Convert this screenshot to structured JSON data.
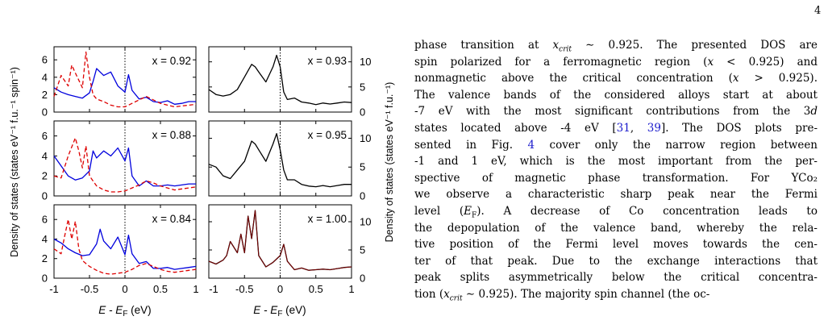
{
  "page_number": "4",
  "figure": {
    "y_axis_left": "Density of states (states eV⁻¹ f.u.⁻¹ spin⁻¹)",
    "y_axis_right": "Density of states (states eV⁻¹ f.u.⁻¹)",
    "x_axis_left": "E - E_F (eV)",
    "x_axis_right": "E - E_F (eV)",
    "colors": {
      "majority": "#0000dd",
      "minority": "#dd0000",
      "total": "#000000",
      "dark_red": "#7a0000"
    }
  },
  "chart_data": [
    {
      "type": "line",
      "panel": "left-top",
      "annotation": "x = 0.92",
      "xlim": [
        -1,
        1
      ],
      "ylim": [
        0,
        7.5
      ],
      "xticks": [
        -1,
        -0.5,
        0,
        0.5,
        1
      ],
      "yticks": [
        0,
        2,
        4,
        6
      ],
      "series": [
        {
          "style": "solid-blue",
          "x": [
            -1,
            -0.9,
            -0.8,
            -0.7,
            -0.6,
            -0.5,
            -0.45,
            -0.4,
            -0.3,
            -0.2,
            -0.1,
            0,
            0.05,
            0.1,
            0.2,
            0.3,
            0.4,
            0.5,
            0.6,
            0.7,
            0.8,
            0.9,
            1
          ],
          "y": [
            2.8,
            2.3,
            2.0,
            1.8,
            1.6,
            2.2,
            3.5,
            5.0,
            4.2,
            4.6,
            3.0,
            2.3,
            4.3,
            2.5,
            1.5,
            1.7,
            1.2,
            1.1,
            1.3,
            0.9,
            1.0,
            1.2,
            1.2
          ]
        },
        {
          "style": "dashed-red",
          "x": [
            -1,
            -0.9,
            -0.8,
            -0.75,
            -0.7,
            -0.6,
            -0.55,
            -0.5,
            -0.45,
            -0.4,
            -0.3,
            -0.2,
            -0.1,
            0,
            0.1,
            0.2,
            0.3,
            0.4,
            0.5,
            0.6,
            0.7,
            0.8,
            0.9,
            1
          ],
          "y": [
            1.8,
            4.2,
            3.0,
            5.4,
            4.5,
            2.8,
            6.9,
            4.0,
            2.0,
            1.5,
            1.2,
            0.8,
            0.6,
            0.6,
            1.0,
            1.4,
            1.8,
            1.4,
            1.0,
            0.8,
            0.6,
            0.7,
            0.8,
            0.9
          ]
        }
      ]
    },
    {
      "type": "line",
      "panel": "left-middle",
      "annotation": "x = 0.88",
      "xlim": [
        -1,
        1
      ],
      "ylim": [
        0,
        7.5
      ],
      "xticks": [
        -1,
        -0.5,
        0,
        0.5,
        1
      ],
      "yticks": [
        0,
        2,
        4,
        6
      ],
      "series": [
        {
          "style": "solid-blue",
          "x": [
            -1,
            -0.9,
            -0.8,
            -0.7,
            -0.6,
            -0.5,
            -0.45,
            -0.4,
            -0.3,
            -0.2,
            -0.1,
            0,
            0.05,
            0.1,
            0.2,
            0.3,
            0.4,
            0.5,
            0.6,
            0.7,
            0.8,
            0.9,
            1
          ],
          "y": [
            4.0,
            3.0,
            2.0,
            1.6,
            1.8,
            2.5,
            4.5,
            3.8,
            4.5,
            4.0,
            4.8,
            3.5,
            4.8,
            2.0,
            1.0,
            1.5,
            1.0,
            1.0,
            1.1,
            1.0,
            1.1,
            1.2,
            1.2
          ]
        },
        {
          "style": "dashed-red",
          "x": [
            -1,
            -0.9,
            -0.8,
            -0.7,
            -0.65,
            -0.6,
            -0.55,
            -0.5,
            -0.4,
            -0.3,
            -0.2,
            -0.1,
            0,
            0.1,
            0.2,
            0.3,
            0.4,
            0.5,
            0.6,
            0.7,
            0.8,
            0.9,
            1
          ],
          "y": [
            2.0,
            1.8,
            4.0,
            5.8,
            4.5,
            2.8,
            5.0,
            2.0,
            1.0,
            0.6,
            0.4,
            0.4,
            0.5,
            0.8,
            1.1,
            1.5,
            1.3,
            1.0,
            0.8,
            0.6,
            0.7,
            0.8,
            0.9
          ]
        }
      ]
    },
    {
      "type": "line",
      "panel": "left-bottom",
      "annotation": "x = 0.84",
      "xlim": [
        -1,
        1
      ],
      "ylim": [
        0,
        7.5
      ],
      "xticks": [
        -1,
        -0.5,
        0,
        0.5,
        1
      ],
      "yticks": [
        0,
        2,
        4,
        6
      ],
      "series": [
        {
          "style": "solid-blue",
          "x": [
            -1,
            -0.9,
            -0.8,
            -0.7,
            -0.6,
            -0.5,
            -0.4,
            -0.35,
            -0.3,
            -0.2,
            -0.1,
            0,
            0.05,
            0.1,
            0.2,
            0.3,
            0.4,
            0.5,
            0.6,
            0.7,
            0.8,
            0.9,
            1
          ],
          "y": [
            4.0,
            3.6,
            3.0,
            2.6,
            2.3,
            2.4,
            3.5,
            5.0,
            3.8,
            3.0,
            4.2,
            2.4,
            4.4,
            2.5,
            1.5,
            1.7,
            1.0,
            1.0,
            1.1,
            0.9,
            1.0,
            1.1,
            1.2
          ]
        },
        {
          "style": "dashed-red",
          "x": [
            -1,
            -0.9,
            -0.85,
            -0.8,
            -0.75,
            -0.7,
            -0.65,
            -0.6,
            -0.5,
            -0.4,
            -0.3,
            -0.2,
            -0.1,
            0,
            0.1,
            0.2,
            0.3,
            0.4,
            0.5,
            0.6,
            0.7,
            0.8,
            0.9,
            1
          ],
          "y": [
            3.0,
            2.5,
            4.3,
            6.0,
            4.0,
            5.8,
            3.0,
            1.8,
            1.2,
            0.8,
            0.5,
            0.4,
            0.5,
            0.6,
            0.9,
            1.3,
            1.5,
            1.2,
            0.9,
            0.7,
            0.6,
            0.7,
            0.8,
            0.9
          ]
        }
      ]
    },
    {
      "type": "line",
      "panel": "right-top",
      "annotation": "x = 0.93",
      "xlim": [
        -1,
        1
      ],
      "ylim": [
        0,
        13
      ],
      "xticks": [
        -1,
        -0.5,
        0,
        0.5,
        1
      ],
      "yticks": [
        0,
        5,
        10
      ],
      "series": [
        {
          "style": "solid-black",
          "x": [
            -1,
            -0.9,
            -0.8,
            -0.7,
            -0.6,
            -0.5,
            -0.4,
            -0.35,
            -0.3,
            -0.2,
            -0.1,
            -0.05,
            0,
            0.05,
            0.1,
            0.2,
            0.3,
            0.4,
            0.5,
            0.6,
            0.7,
            0.8,
            0.9,
            1
          ],
          "y": [
            4.5,
            3.5,
            3.2,
            3.5,
            4.5,
            7.0,
            9.5,
            9.0,
            8.0,
            6.0,
            9.0,
            11.3,
            9.0,
            4.0,
            2.5,
            2.8,
            2.0,
            1.8,
            1.5,
            1.8,
            1.6,
            1.8,
            2.0,
            1.9
          ]
        }
      ]
    },
    {
      "type": "line",
      "panel": "right-middle",
      "annotation": "x = 0.95",
      "xlim": [
        -1,
        1
      ],
      "ylim": [
        0,
        13
      ],
      "xticks": [
        -1,
        -0.5,
        0,
        0.5,
        1
      ],
      "yticks": [
        0,
        5,
        10
      ],
      "series": [
        {
          "style": "solid-black",
          "x": [
            -1,
            -0.9,
            -0.8,
            -0.7,
            -0.6,
            -0.5,
            -0.4,
            -0.35,
            -0.3,
            -0.2,
            -0.1,
            -0.05,
            0,
            0.05,
            0.1,
            0.2,
            0.3,
            0.4,
            0.5,
            0.6,
            0.7,
            0.8,
            0.9,
            1
          ],
          "y": [
            5.5,
            5.0,
            3.5,
            3.0,
            4.5,
            6.0,
            9.5,
            9.0,
            8.0,
            6.0,
            9.0,
            10.8,
            8.0,
            4.5,
            2.8,
            2.8,
            2.0,
            1.7,
            1.6,
            1.8,
            1.6,
            1.8,
            2.0,
            2.0
          ]
        }
      ]
    },
    {
      "type": "line",
      "panel": "right-bottom",
      "annotation": "x = 1.00",
      "xlim": [
        -1,
        1
      ],
      "ylim": [
        0,
        13
      ],
      "xticks": [
        -1,
        -0.5,
        0,
        0.5,
        1
      ],
      "yticks": [
        0,
        5,
        10
      ],
      "series": [
        {
          "style": "solid-black",
          "x": [
            -1,
            -0.9,
            -0.8,
            -0.75,
            -0.7,
            -0.6,
            -0.55,
            -0.5,
            -0.45,
            -0.4,
            -0.35,
            -0.3,
            -0.2,
            -0.1,
            0,
            0.05,
            0.1,
            0.2,
            0.3,
            0.4,
            0.5,
            0.6,
            0.7,
            0.8,
            0.9,
            1
          ],
          "y": [
            3.0,
            2.5,
            3.2,
            4.0,
            6.5,
            4.5,
            7.8,
            4.5,
            11.0,
            7.0,
            12.0,
            4.0,
            2.0,
            2.8,
            4.0,
            6.0,
            3.0,
            1.5,
            1.8,
            1.4,
            1.5,
            1.6,
            1.5,
            1.7,
            1.9,
            2.0
          ]
        },
        {
          "style": "solid-dark-red",
          "x": [
            -1,
            -0.9,
            -0.8,
            -0.75,
            -0.7,
            -0.6,
            -0.55,
            -0.5,
            -0.45,
            -0.4,
            -0.35,
            -0.3,
            -0.2,
            -0.1,
            0,
            0.05,
            0.1,
            0.2,
            0.3,
            0.4,
            0.5,
            0.6,
            0.7,
            0.8,
            0.9,
            1
          ],
          "y": [
            3.0,
            2.5,
            3.2,
            4.0,
            6.5,
            4.5,
            7.8,
            4.5,
            11.0,
            7.0,
            12.0,
            4.0,
            2.0,
            2.8,
            4.0,
            6.0,
            3.0,
            1.5,
            1.8,
            1.4,
            1.5,
            1.6,
            1.5,
            1.7,
            1.9,
            2.0
          ]
        }
      ]
    }
  ],
  "text_lines": [
    [
      "phase transition at x",
      "crit",
      " ∼ 0.925. The presented DOS are"
    ],
    [
      "spin polarized for a ferromagnetic region (x < 0.925) and"
    ],
    [
      "nonmagnetic above the critical concentration (x > 0.925)."
    ],
    [
      "The valence bands of the considered alloys start at about"
    ],
    [
      "-7 eV with the most significant contributions from the 3d"
    ],
    [
      "states located above -4 eV [",
      "31",
      ", ",
      "39",
      "]. The DOS plots pre-"
    ],
    [
      "sented in Fig. ",
      "4",
      " cover only the narrow region between"
    ],
    [
      "-1 and 1 eV, which is the most important from the per-"
    ],
    [
      "spective of magnetic phase transformation.  For YCo₂"
    ],
    [
      "we observe a characteristic sharp peak near the Fermi"
    ],
    [
      "level (E_F).   A decrease of Co concentration leads to"
    ],
    [
      "the depopulation of the valence band, whereby the rela-"
    ],
    [
      "tive position of the Fermi level moves towards the cen-"
    ],
    [
      "ter of that peak. Due to the exchange interactions that"
    ],
    [
      "peak splits asymmetrically below the critical concentra-"
    ],
    [
      "tion (x",
      "crit",
      " ∼ 0.925). The majority spin channel (the oc-"
    ]
  ]
}
